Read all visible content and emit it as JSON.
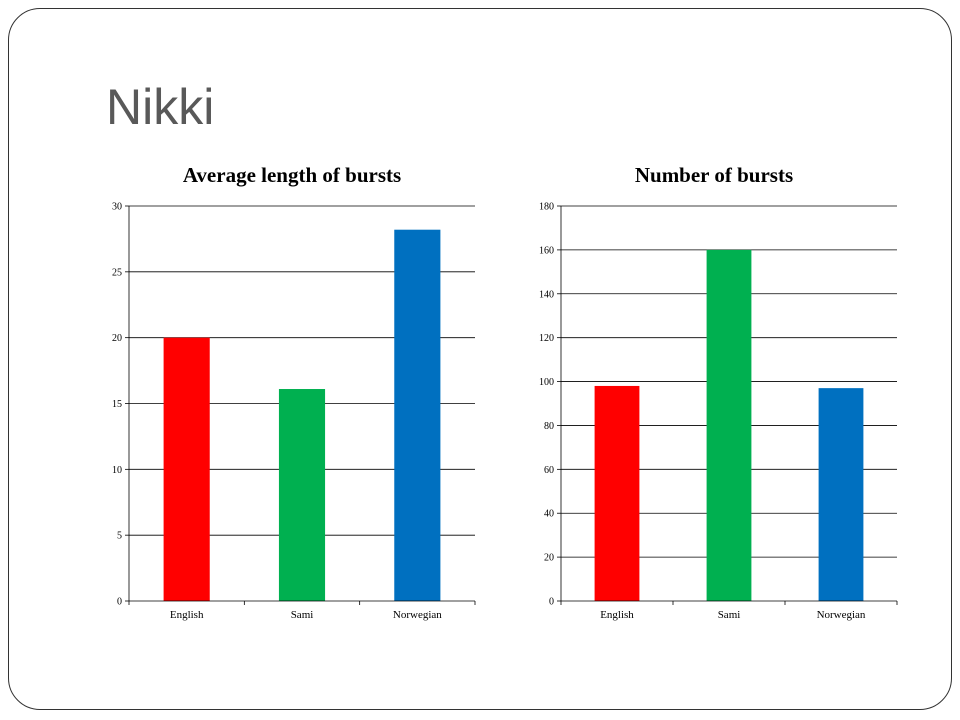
{
  "slide": {
    "title": "Nikki"
  },
  "chart_data": [
    {
      "type": "bar",
      "title": "Average length of bursts",
      "categories": [
        "English",
        "Sami",
        "Norwegian"
      ],
      "values": [
        20,
        16.1,
        28.2
      ],
      "colors": [
        "#ff0000",
        "#00b050",
        "#0070c0"
      ],
      "ylim": [
        0,
        30
      ],
      "yticks": [
        0,
        5,
        10,
        15,
        20,
        25,
        30
      ],
      "xlabel": "",
      "ylabel": "",
      "grid": true,
      "legend": "none"
    },
    {
      "type": "bar",
      "title": "Number of bursts",
      "categories": [
        "English",
        "Sami",
        "Norwegian"
      ],
      "values": [
        98,
        160,
        97
      ],
      "colors": [
        "#ff0000",
        "#00b050",
        "#0070c0"
      ],
      "ylim": [
        0,
        180
      ],
      "yticks": [
        0,
        20,
        40,
        60,
        80,
        100,
        120,
        140,
        160,
        180
      ],
      "xlabel": "",
      "ylabel": "",
      "grid": true,
      "legend": "none"
    }
  ]
}
